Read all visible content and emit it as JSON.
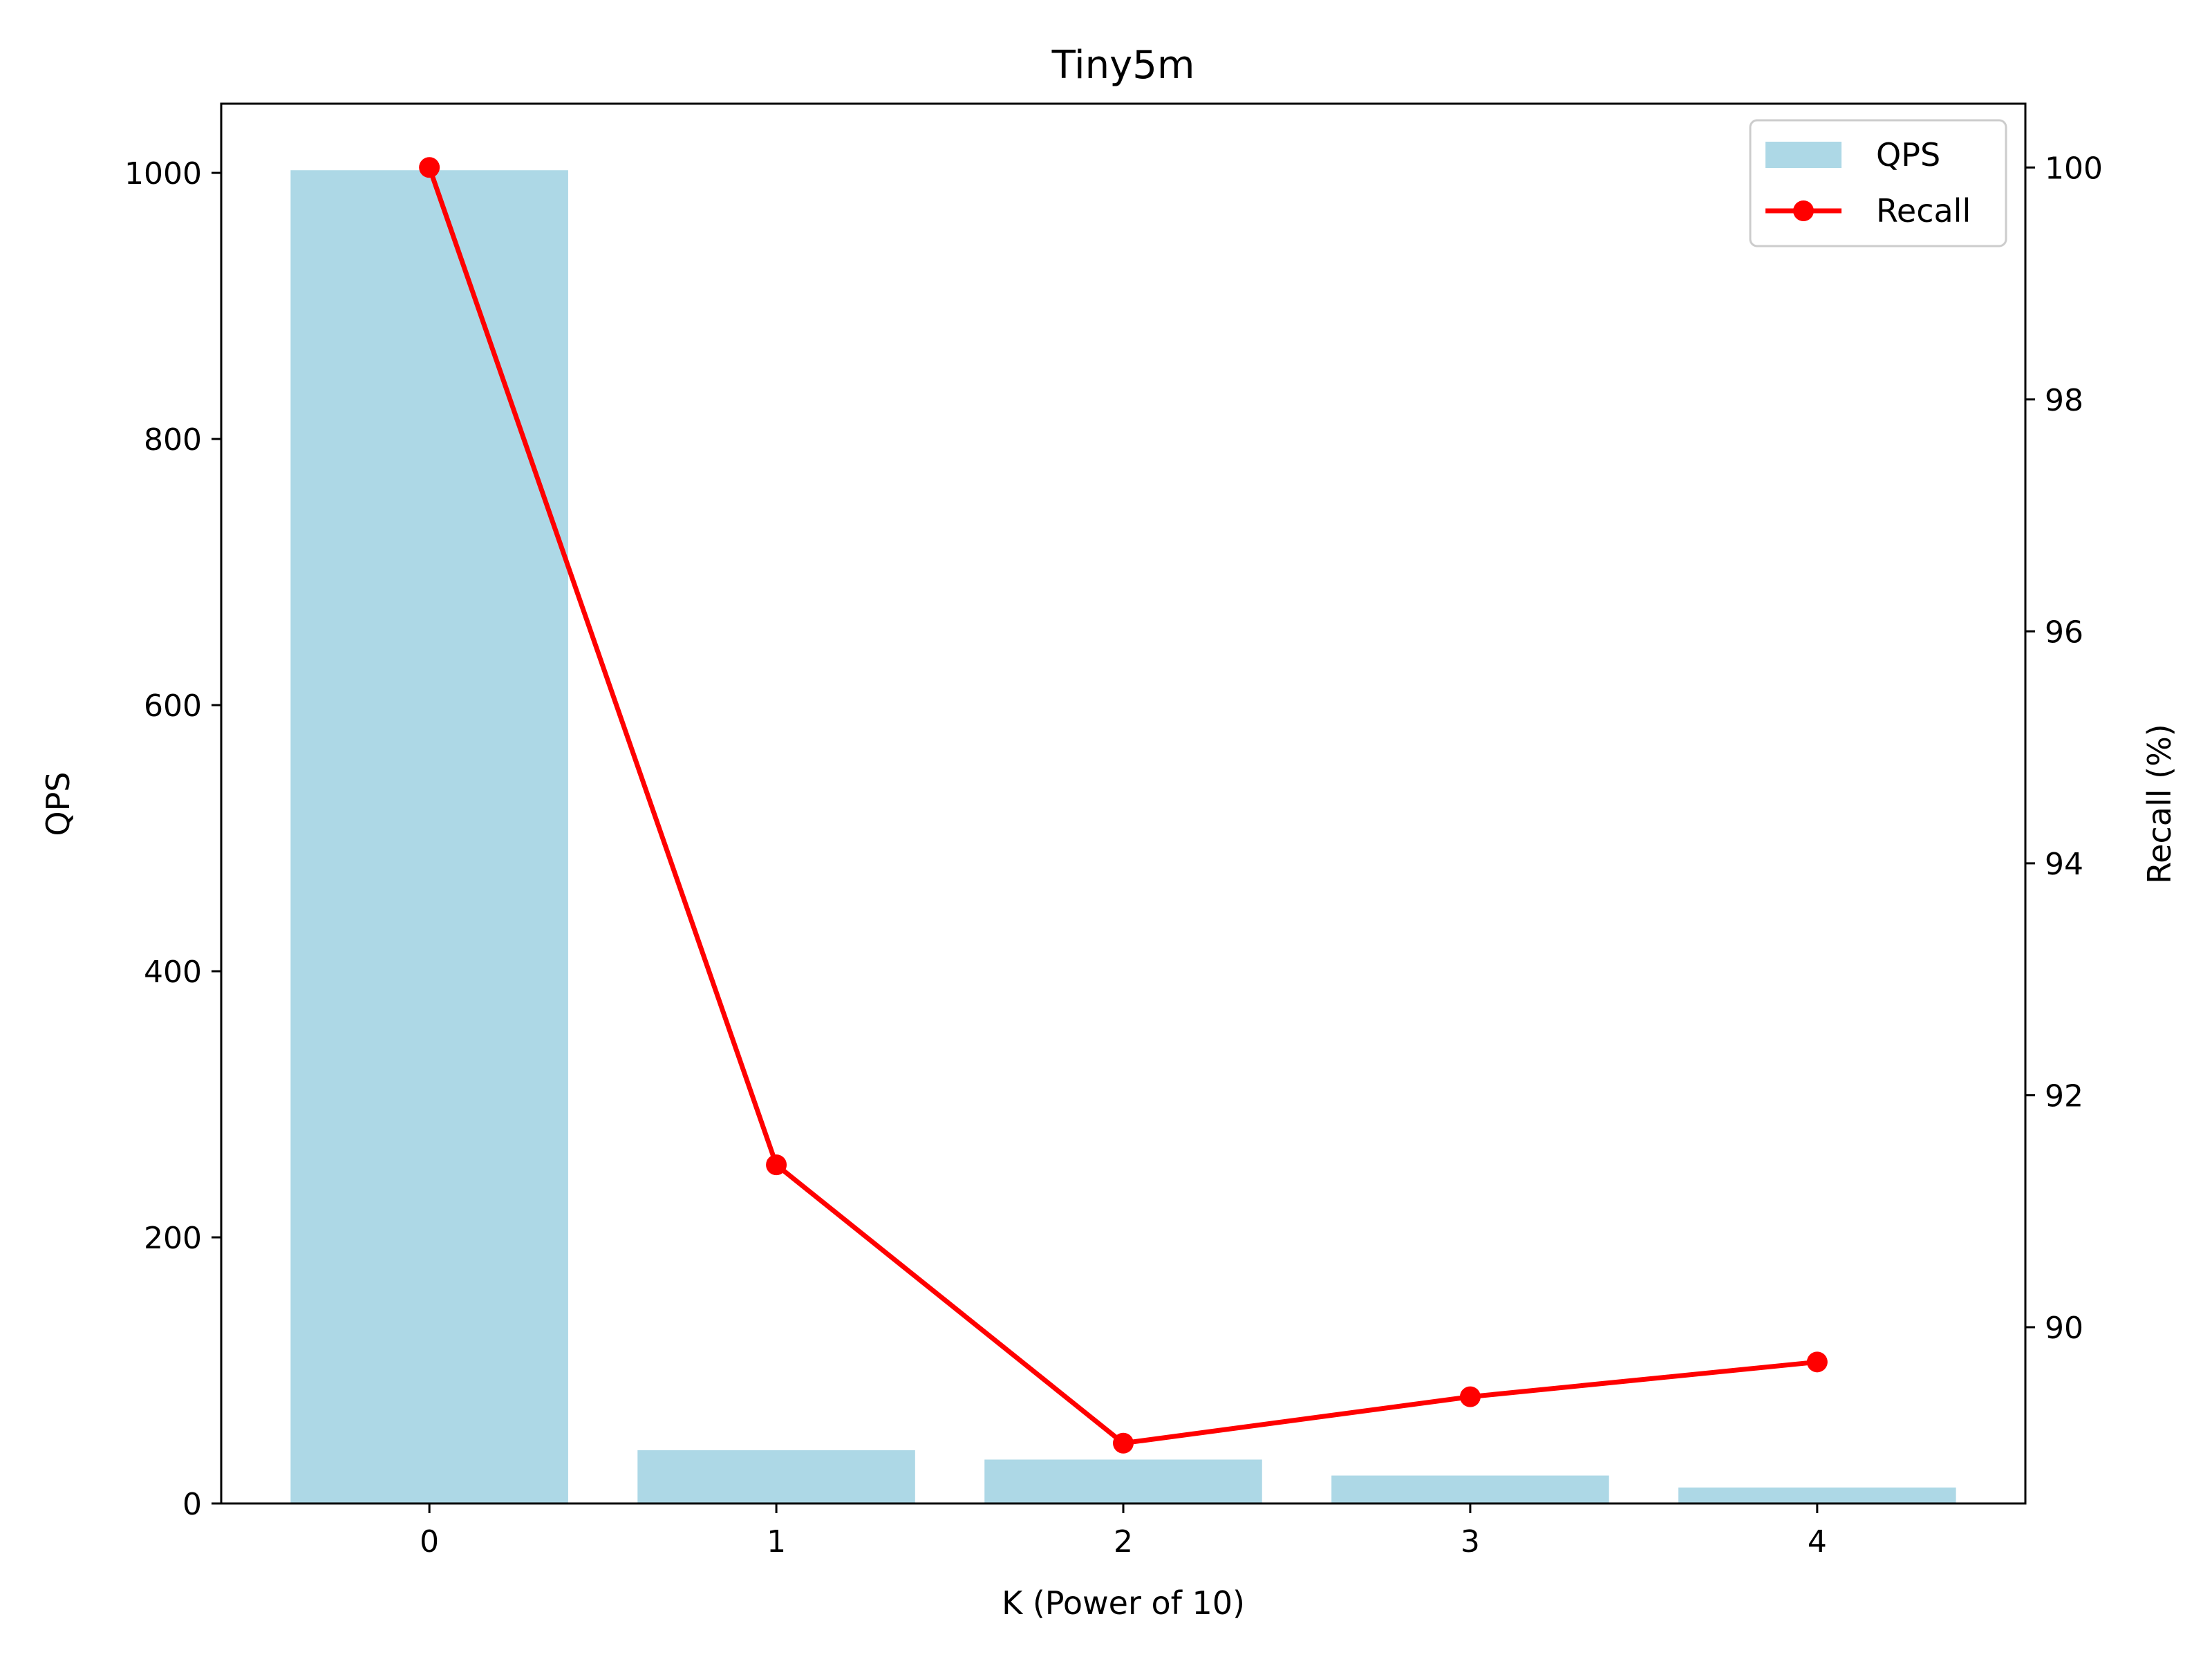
{
  "chart_data": {
    "type": "bar",
    "title": "Tiny5m",
    "xlabel": "K (Power of 10)",
    "ylabel": "QPS",
    "y2label": "Recall (%)",
    "categories": [
      "0",
      "1",
      "2",
      "3",
      "4"
    ],
    "x": [
      0,
      1,
      2,
      3,
      4
    ],
    "xlim": [
      -0.6,
      4.6
    ],
    "ylim": [
      0,
      1052
    ],
    "y2lim": [
      88.48,
      100.55
    ],
    "yticks": [
      0,
      200,
      400,
      600,
      800,
      1000
    ],
    "y2ticks": [
      90,
      92,
      94,
      96,
      98,
      100
    ],
    "grid": false,
    "legend_position": "top-right",
    "series": [
      {
        "name": "QPS",
        "type": "bar",
        "axis": "left",
        "color": "#add8e6",
        "values": [
          1002,
          40,
          33,
          21,
          12
        ]
      },
      {
        "name": "Recall",
        "type": "line",
        "axis": "right",
        "color": "#ff0000",
        "marker": "circle",
        "values": [
          100.0,
          91.4,
          89.0,
          89.4,
          89.7
        ]
      }
    ]
  }
}
